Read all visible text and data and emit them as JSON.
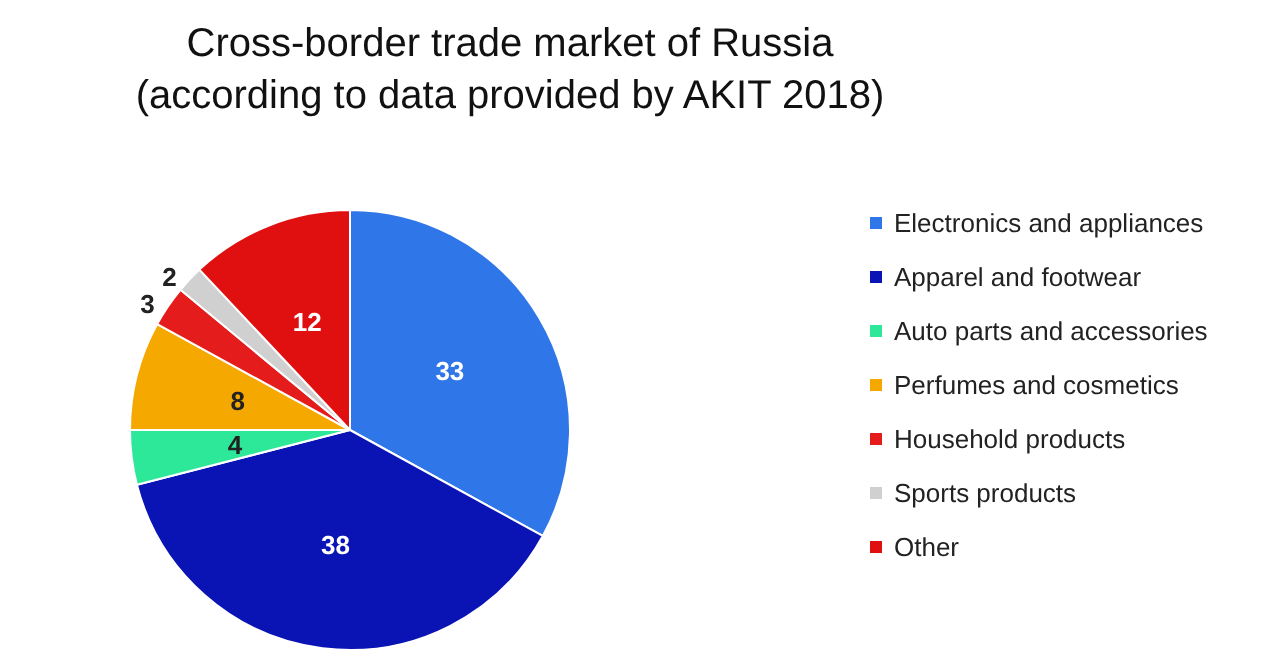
{
  "chart_data": {
    "type": "pie",
    "title": "Cross-border trade market of Russia\n(according to data provided by AKIT 2018)",
    "categories": [
      "Electronics and appliances",
      "Apparel and footwear",
      "Auto parts and accessories",
      "Perfumes and cosmetics",
      "Household products",
      "Sports products",
      "Other"
    ],
    "values": [
      33,
      38,
      4,
      8,
      3,
      2,
      12
    ],
    "colors": [
      "#2f76e8",
      "#0a14b4",
      "#2ee89a",
      "#f5a800",
      "#e51c1c",
      "#d0d0d0",
      "#e01010"
    ],
    "data_labels": true,
    "legend": "right"
  }
}
